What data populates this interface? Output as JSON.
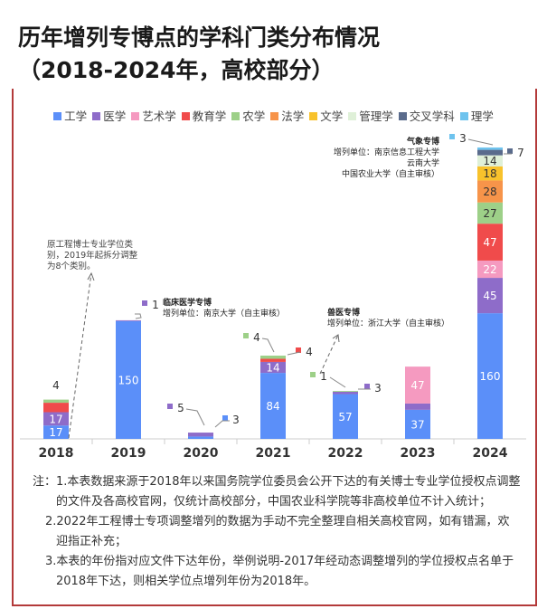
{
  "title_line1": "历年增列专博点的学科门类分布情况",
  "title_line2": "（2018-2024年，高校部分）",
  "chart_data": {
    "type": "bar",
    "stacked": true,
    "categories": [
      "2018",
      "2019",
      "2020",
      "2021",
      "2022",
      "2023",
      "2024"
    ],
    "series": [
      {
        "name": "工学",
        "color": "#5b8ff9",
        "values": [
          17,
          150,
          3,
          84,
          57,
          37,
          160
        ]
      },
      {
        "name": "医学",
        "color": "#8e6cc9",
        "values": [
          17,
          1,
          5,
          14,
          3,
          8,
          45
        ]
      },
      {
        "name": "艺术学",
        "color": "#f59ac0",
        "values": [
          0,
          0,
          0,
          0,
          0,
          47,
          22
        ]
      },
      {
        "name": "教育学",
        "color": "#f04b4b",
        "values": [
          12,
          0,
          0,
          4,
          0,
          0,
          47
        ]
      },
      {
        "name": "农学",
        "color": "#9dd088",
        "values": [
          4,
          0,
          0,
          4,
          1,
          0,
          27
        ]
      },
      {
        "name": "法学",
        "color": "#f7944a",
        "values": [
          0,
          0,
          0,
          0,
          0,
          0,
          28
        ]
      },
      {
        "name": "文学",
        "color": "#f8c22c",
        "values": [
          0,
          0,
          0,
          0,
          0,
          0,
          18
        ]
      },
      {
        "name": "管理学",
        "color": "#dff0d8",
        "values": [
          0,
          0,
          0,
          0,
          0,
          0,
          14
        ]
      },
      {
        "name": "交叉学科",
        "color": "#5a6b8c",
        "values": [
          0,
          0,
          0,
          0,
          0,
          0,
          7
        ]
      },
      {
        "name": "理学",
        "color": "#6ec3ee",
        "values": [
          0,
          0,
          0,
          0,
          0,
          0,
          3
        ]
      }
    ],
    "legend": "top",
    "annotations": [
      {
        "lines": [
          "原工程博士专业学位类",
          "别，2019年起拆分调整",
          "为8个类别。"
        ]
      },
      {
        "lines": [
          "临床医学专博",
          "增列单位：南京大学（自主审核）"
        ]
      },
      {
        "lines": [
          "兽医专博",
          "增列单位：浙江大学（自主审核）"
        ]
      },
      {
        "lines": [
          "气象专博",
          "增列单位：南京信息工程大学",
          "云南大学",
          "中国农业大学（自主审核）"
        ]
      }
    ]
  },
  "notes": [
    "注：1.本表数据来源于2018年以来国务院学位委员会公开下达的有关博士专业学位授权点调整的文件及各高校官网，仅统计高校部分，中国农业科学院等非高校单位不计入统计；",
    "2.2022年工程博士专项调整增列的数据为手动不完全整理自相关高校官网，如有错漏，欢迎指正补充；",
    "3.本表的年份指对应文件下达年份，举例说明-2017年经动态调整增列的学位授权点名单于2018年下达，则相关学位点增列年份为2018年。"
  ]
}
